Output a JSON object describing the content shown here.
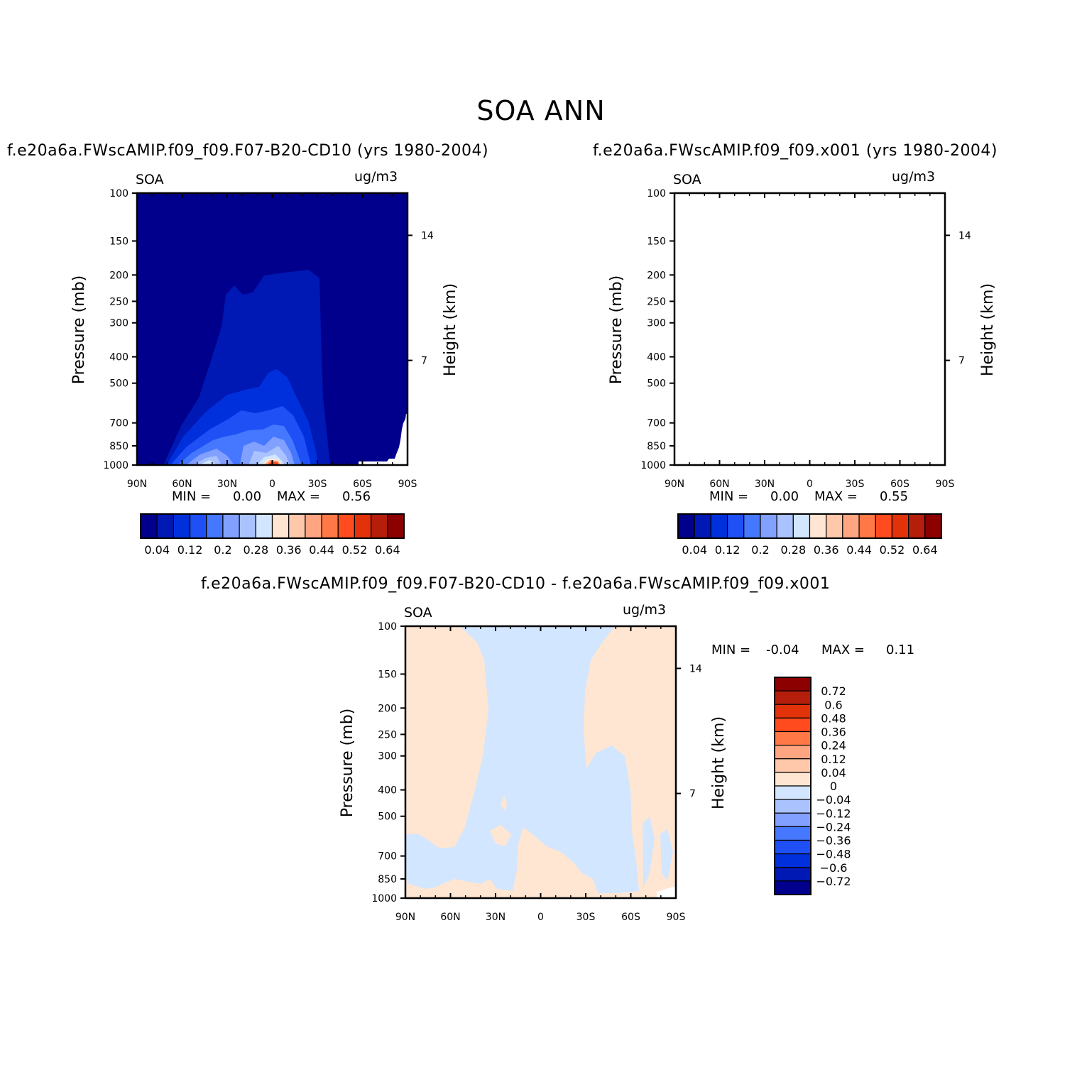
{
  "title": "SOA ANN",
  "colors": {
    "abs_fill": [
      "#00008c",
      "#0018b4",
      "#0030dc",
      "#1e50f5",
      "#4678ff",
      "#82a0ff",
      "#aac3ff",
      "#d2e6ff",
      "#ffe6d2",
      "#ffc8aa",
      "#ffa582",
      "#ff7846",
      "#ff4b1e",
      "#e1320a",
      "#b41e0a",
      "#8c0000"
    ],
    "diff_fill": [
      "#00008c",
      "#0018b4",
      "#0030dc",
      "#1e50f5",
      "#4678ff",
      "#82a0ff",
      "#aac3ff",
      "#d2e6ff",
      "#ffe6d2",
      "#ffc8aa",
      "#ffa582",
      "#ff7846",
      "#ff4b1e",
      "#e1320a",
      "#b41e0a",
      "#8c0000"
    ]
  },
  "chart_data": [
    {
      "type": "heatmap",
      "title": "f.e20a6a.FWscAMIP.f09_f09.F07-B20-CD10 (yrs 1980-2004)",
      "variable": "SOA",
      "units": "ug/m3",
      "xlabel": "",
      "ylabel": "Pressure (mb)",
      "ylabel_right": "Height (km)",
      "x_ticks": [
        "90N",
        "60N",
        "30N",
        "0",
        "30S",
        "60S",
        "90S"
      ],
      "x_range": [
        90,
        -90
      ],
      "y_ticks": [
        100,
        150,
        200,
        250,
        300,
        400,
        500,
        700,
        850,
        1000
      ],
      "y_range": [
        100,
        1000
      ],
      "y_scale": "log",
      "right_ticks": [
        "14",
        "7"
      ],
      "min_label": "MIN =",
      "min_value": "0.00",
      "max_label": "MAX =",
      "max_value": "0.56",
      "colorbar_labels": [
        "0.04",
        "0.12",
        "0.2",
        "0.28",
        "0.36",
        "0.44",
        "0.52",
        "0.64"
      ],
      "colorbar_orientation": "horizontal"
    },
    {
      "type": "heatmap",
      "title": "f.e20a6a.FWscAMIP.f09_f09.x001 (yrs 1980-2004)",
      "variable": "SOA",
      "units": "ug/m3",
      "xlabel": "",
      "ylabel": "Pressure (mb)",
      "ylabel_right": "Height (km)",
      "x_ticks": [
        "90N",
        "60N",
        "30N",
        "0",
        "30S",
        "60S",
        "90S"
      ],
      "x_range": [
        90,
        -90
      ],
      "y_ticks": [
        100,
        150,
        200,
        250,
        300,
        400,
        500,
        700,
        850,
        1000
      ],
      "y_range": [
        100,
        1000
      ],
      "y_scale": "log",
      "right_ticks": [
        "14",
        "7"
      ],
      "min_label": "MIN =",
      "min_value": "0.00",
      "max_label": "MAX =",
      "max_value": "0.55",
      "colorbar_labels": [
        "0.04",
        "0.12",
        "0.2",
        "0.28",
        "0.36",
        "0.44",
        "0.52",
        "0.64"
      ],
      "colorbar_orientation": "horizontal"
    },
    {
      "type": "heatmap",
      "title": "f.e20a6a.FWscAMIP.f09_f09.F07-B20-CD10 - f.e20a6a.FWscAMIP.f09_f09.x001",
      "variable": "SOA",
      "units": "ug/m3",
      "xlabel": "",
      "ylabel": "Pressure (mb)",
      "ylabel_right": "Height (km)",
      "x_ticks": [
        "90N",
        "60N",
        "30N",
        "0",
        "30S",
        "60S",
        "90S"
      ],
      "x_range": [
        90,
        -90
      ],
      "y_ticks": [
        100,
        150,
        200,
        250,
        300,
        400,
        500,
        700,
        850,
        1000
      ],
      "y_range": [
        100,
        1000
      ],
      "y_scale": "log",
      "right_ticks": [
        "14",
        "7"
      ],
      "min_label": "MIN =",
      "min_value": "-0.04",
      "max_label": "MAX =",
      "max_value": "0.11",
      "colorbar_labels": [
        "0.72",
        "0.6",
        "0.48",
        "0.36",
        "0.24",
        "0.12",
        "0.04",
        "0",
        "-0.04",
        "-0.12",
        "-0.24",
        "-0.36",
        "-0.48",
        "-0.6",
        "-0.72"
      ],
      "colorbar_orientation": "vertical"
    }
  ]
}
